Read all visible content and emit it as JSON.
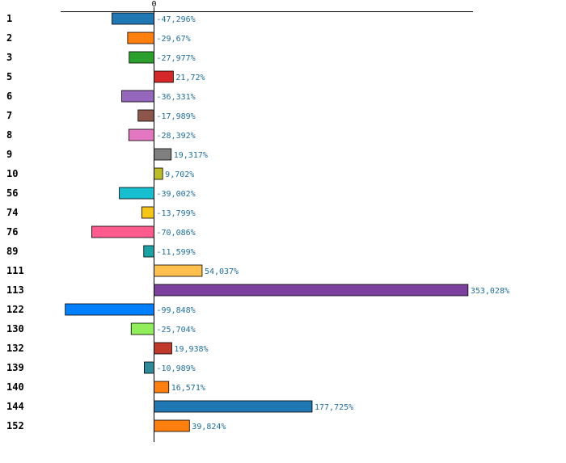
{
  "chart_data": {
    "type": "bar",
    "orientation": "horizontal",
    "title": "",
    "xlabel": "",
    "ylabel": "",
    "zero_tick_label": "0",
    "xlim": [
      -105,
      357
    ],
    "grid": false,
    "legend": "none",
    "categories": [
      "1",
      "2",
      "3",
      "5",
      "6",
      "7",
      "8",
      "9",
      "10",
      "56",
      "74",
      "76",
      "89",
      "111",
      "113",
      "122",
      "130",
      "132",
      "139",
      "140",
      "144",
      "152"
    ],
    "values": [
      -47.296,
      -29.67,
      -27.977,
      21.72,
      -36.331,
      -17.989,
      -28.392,
      19.317,
      9.702,
      -39.002,
      -13.799,
      -70.086,
      -11.599,
      54.037,
      353.028,
      -99.848,
      -25.704,
      19.938,
      -10.989,
      16.571,
      177.725,
      39.824
    ],
    "value_labels": [
      "-47,296%",
      "-29,67%",
      "-27,977%",
      "21,72%",
      "-36,331%",
      "-17,989%",
      "-28,392%",
      "19,317%",
      "9,702%",
      "-39,002%",
      "-13,799%",
      "-70,086%",
      "-11,599%",
      "54,037%",
      "353,028%",
      "-99,848%",
      "-25,704%",
      "19,938%",
      "-10,989%",
      "16,571%",
      "177,725%",
      "39,824%"
    ],
    "colors": [
      "#1f77b4",
      "#ff7f0e",
      "#2ca02c",
      "#d62728",
      "#9467bd",
      "#8c564b",
      "#e377c2",
      "#7f7f7f",
      "#bcbd22",
      "#17becf",
      "#f5c518",
      "#ff5b8e",
      "#1aa3a3",
      "#ffc04d",
      "#7b3f9e",
      "#0080ff",
      "#90ee5a",
      "#c0392b",
      "#2e8b9a",
      "#ff7f0e",
      "#1f77b4",
      "#ff7f0e"
    ]
  }
}
